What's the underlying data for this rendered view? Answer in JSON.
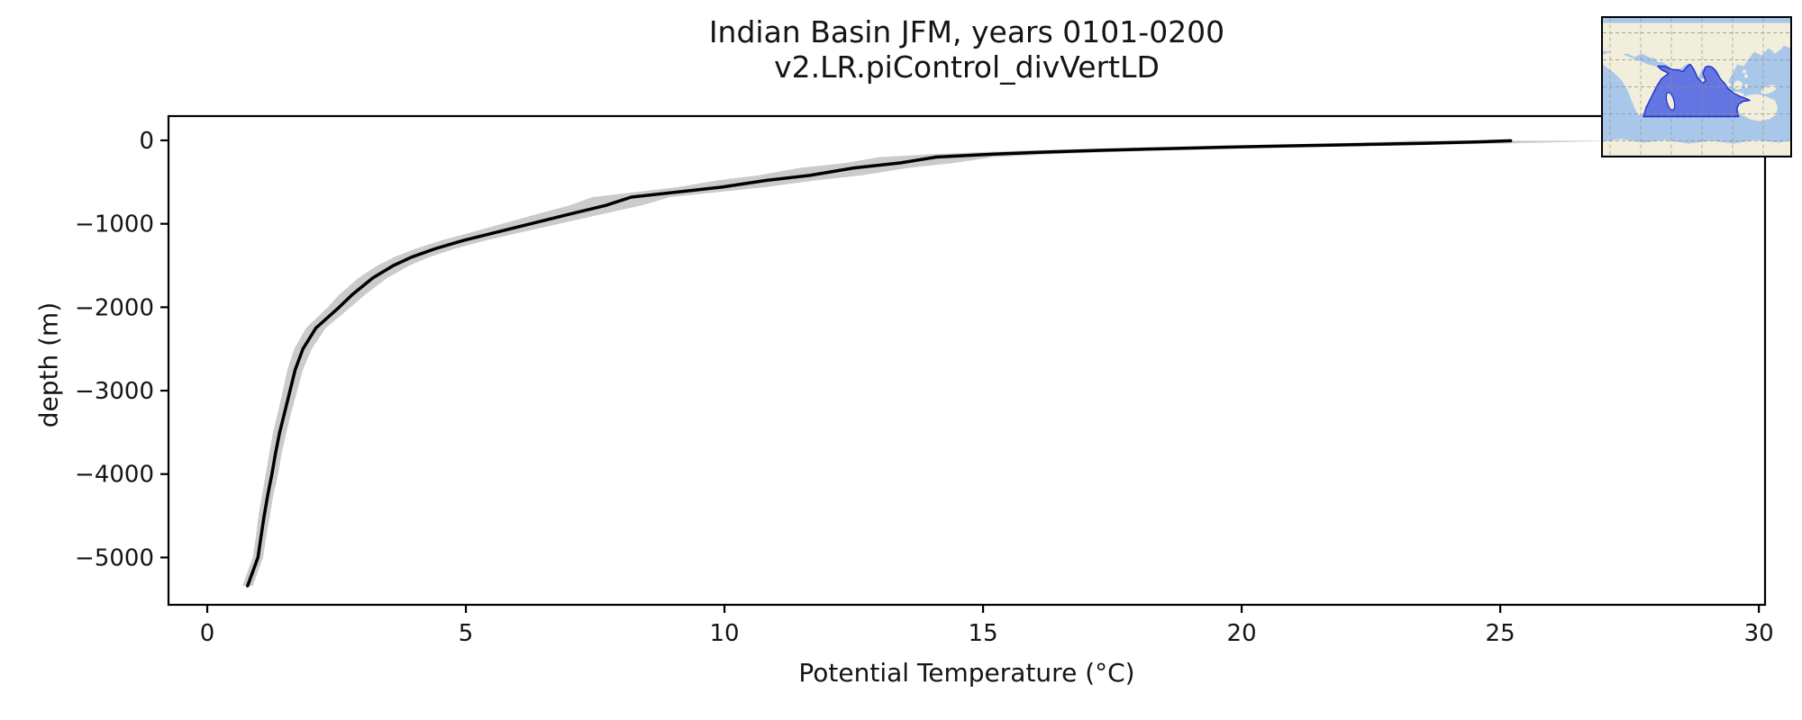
{
  "title": {
    "line1": "Indian Basin JFM, years 0101-0200",
    "line2": "v2.LR.piControl_divVertLD"
  },
  "axes": {
    "xlabel": "Potential Temperature (°C)",
    "ylabel": "depth (m)",
    "xtick_labels": [
      "0",
      "5",
      "10",
      "15",
      "20",
      "25",
      "30"
    ],
    "ytick_labels": [
      "0",
      "−1000",
      "−2000",
      "−3000",
      "−4000",
      "−5000"
    ]
  },
  "chart_data": {
    "type": "line",
    "title": "Indian Basin JFM, years 0101-0200",
    "subtitle": "v2.LR.piControl_divVertLD",
    "xlabel": "Potential Temperature (°C)",
    "ylabel": "depth (m)",
    "xlim": [
      -0.75,
      30.12
    ],
    "ylim": [
      -5567,
      291
    ],
    "xticks": [
      0,
      5,
      10,
      15,
      20,
      25,
      30
    ],
    "yticks": [
      0,
      -1000,
      -2000,
      -3000,
      -4000,
      -5000
    ],
    "grid": false,
    "legend": "none",
    "series": [
      {
        "name": "mean potential temperature profile",
        "style": "line",
        "color": "#000000",
        "depth_m": [
          -5,
          -20,
          -35,
          -50,
          -65,
          -80,
          -100,
          -120,
          -140,
          -165,
          -200,
          -270,
          -330,
          -420,
          -480,
          -560,
          -680,
          -780,
          -900,
          -1000,
          -1100,
          -1200,
          -1300,
          -1400,
          -1500,
          -1650,
          -1850,
          -2000,
          -2250,
          -2500,
          -2750,
          -3000,
          -3250,
          -3500,
          -3750,
          -4000,
          -4250,
          -4500,
          -4750,
          -5000,
          -5340
        ],
        "temperature_c": [
          25.2,
          24.5,
          23.5,
          22.3,
          21.0,
          19.8,
          18.5,
          17.2,
          16.2,
          15.2,
          14.1,
          13.4,
          12.5,
          11.65,
          10.8,
          9.95,
          8.2,
          7.7,
          6.9,
          6.25,
          5.6,
          4.95,
          4.4,
          3.95,
          3.6,
          3.2,
          2.8,
          2.55,
          2.1,
          1.85,
          1.7,
          1.6,
          1.5,
          1.4,
          1.32,
          1.25,
          1.17,
          1.1,
          1.04,
          0.98,
          0.78
        ]
      },
      {
        "name": "interannual spread band (mean ± std dev)",
        "style": "band",
        "color": "#cbcbcb",
        "sigma_c": [
          1.9,
          1.8,
          1.75,
          1.65,
          1.55,
          1.5,
          1.4,
          1.3,
          1.25,
          1.15,
          1.1,
          1.05,
          1.05,
          1.0,
          0.95,
          0.85,
          0.75,
          0.7,
          0.62,
          0.55,
          0.48,
          0.43,
          0.38,
          0.34,
          0.31,
          0.28,
          0.25,
          0.22,
          0.19,
          0.17,
          0.15,
          0.14,
          0.13,
          0.13,
          0.12,
          0.12,
          0.11,
          0.11,
          0.1,
          0.1,
          0.1
        ]
      }
    ],
    "inset": {
      "description": "world map locator with the Indian Ocean basin region highlighted",
      "region": "Indian Basin",
      "ocean_color": "#a9c8e9",
      "land_color": "#f1eedb",
      "region_fill": "#5766df",
      "region_stroke": "#2230cb",
      "grid_color": "#8f8f8f"
    }
  }
}
